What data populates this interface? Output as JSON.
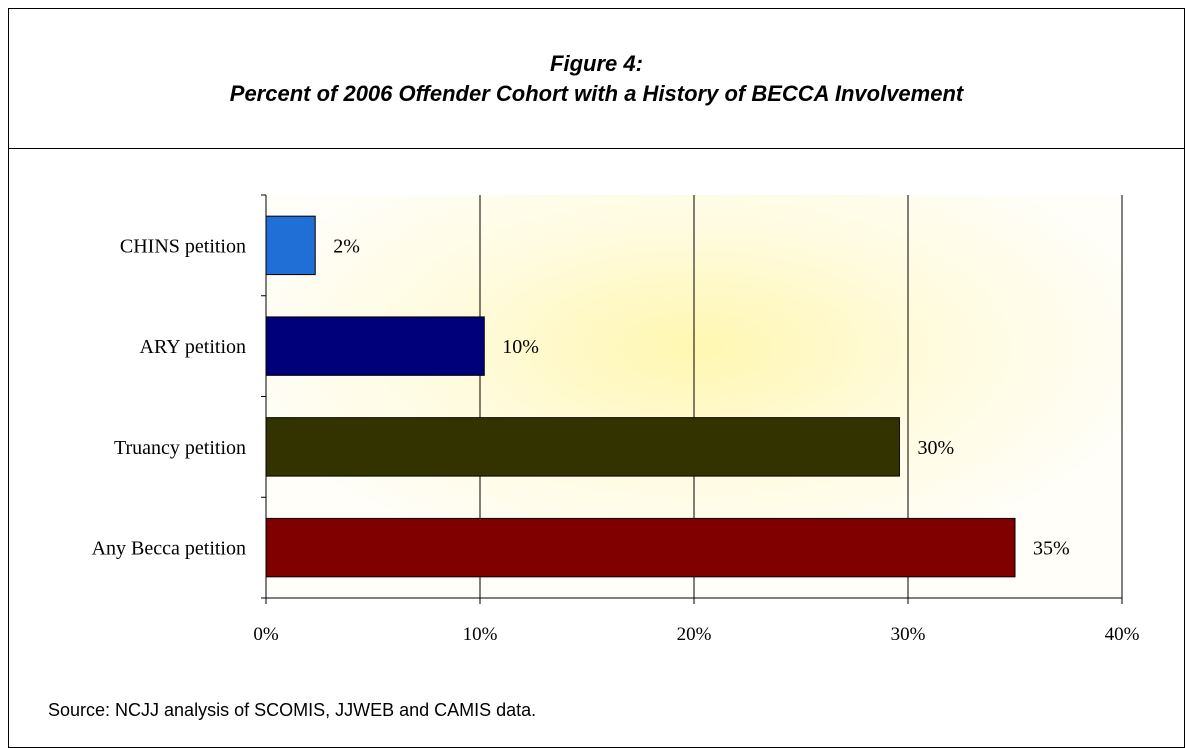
{
  "figure": {
    "title_line1": "Figure 4:",
    "title_line2": "Percent of 2006 Offender Cohort with a History of BECCA Involvement",
    "source": "Source: NCJJ analysis of SCOMIS, JJWEB and CAMIS data."
  },
  "chart_data": {
    "type": "bar",
    "orientation": "horizontal",
    "title": "Percent of 2006 Offender Cohort with a History of BECCA Involvement",
    "categories": [
      "CHINS petition",
      "ARY petition",
      "Truancy petition",
      "Any Becca petition"
    ],
    "values": [
      2.3,
      10.2,
      29.6,
      35.0
    ],
    "value_labels": [
      "2%",
      "10%",
      "30%",
      "35%"
    ],
    "bar_colors": [
      "#1f6fd6",
      "#00007a",
      "#333300",
      "#800000"
    ],
    "xlim": [
      0,
      40
    ],
    "x_ticks": [
      0,
      10,
      20,
      30,
      40
    ],
    "x_tick_labels": [
      "0%",
      "10%",
      "20%",
      "30%",
      "40%"
    ],
    "xlabel": "",
    "ylabel": "",
    "grid": "vertical",
    "legend": "none"
  }
}
